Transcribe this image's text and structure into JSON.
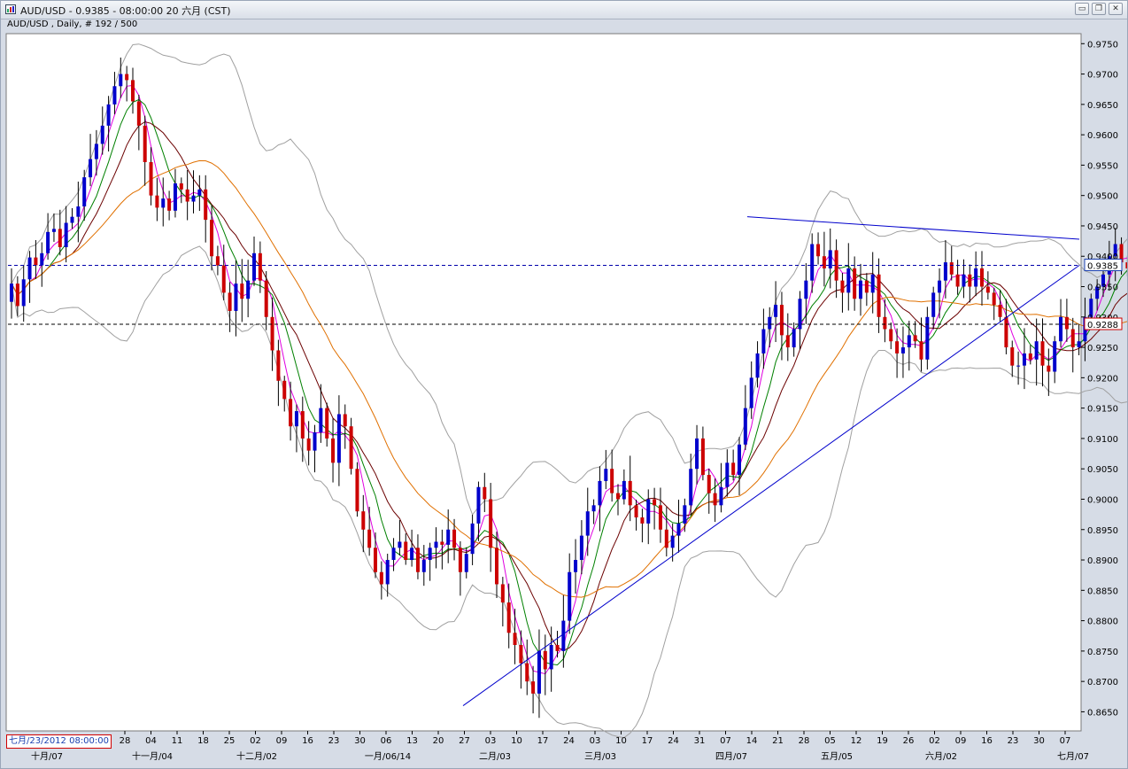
{
  "window": {
    "title": "AUD/USD - 0.9385 - 08:00:00  20 六月 (CST)",
    "minimize_label": "▭",
    "restore_label": "❐",
    "close_label": "✕"
  },
  "chart_header": "AUD/USD , Daily, # 192 / 500",
  "cursor_date": "七月/23/2012 08:00:00",
  "colors": {
    "bull_candle": "#0000cc",
    "bear_candle": "#cc0000",
    "bollinger": "#a0a0a0",
    "ma_fast": "#e000e0",
    "ma_mid": "#008000",
    "ma_slow": "#6b0000",
    "ma_long": "#e07000",
    "trendline": "#0000cc",
    "price_line": "#0000aa",
    "level_line": "#000000"
  },
  "chart_data": {
    "type": "candlestick",
    "symbol": "AUD/USD",
    "timeframe": "Daily",
    "ylim": [
      0.862,
      0.9765
    ],
    "y_ticks": [
      "0.9750",
      "0.9700",
      "0.9650",
      "0.9600",
      "0.9550",
      "0.9500",
      "0.9450",
      "0.9400",
      "0.9350",
      "0.9300",
      "0.9250",
      "0.9200",
      "0.9150",
      "0.9100",
      "0.9050",
      "0.9000",
      "0.8950",
      "0.8900",
      "0.8850",
      "0.8800",
      "0.8750",
      "0.8700",
      "0.8650"
    ],
    "x_ticks": [
      "28",
      "04",
      "11",
      "18",
      "25",
      "02",
      "09",
      "16",
      "23",
      "30",
      "06",
      "13",
      "20",
      "27",
      "03",
      "10",
      "17",
      "24",
      "03",
      "10",
      "17",
      "24",
      "31",
      "07",
      "14",
      "21",
      "28",
      "05",
      "12",
      "19",
      "26",
      "02",
      "09",
      "16",
      "23",
      "30",
      "07"
    ],
    "month_labels": [
      "十月/07",
      "十一月/04",
      "十二月/02",
      "一月/06/14",
      "二月/03",
      "三月/03",
      "四月/07",
      "五月/05",
      "六月/02",
      "七月/07"
    ],
    "current_price": "0.9385",
    "current_price_value": 0.9385,
    "level_label": "0.9288",
    "level_value": 0.9288,
    "closes": [
      0.9355,
      0.9318,
      0.9362,
      0.9398,
      0.9385,
      0.9405,
      0.944,
      0.9445,
      0.9415,
      0.9455,
      0.9465,
      0.9482,
      0.953,
      0.956,
      0.9585,
      0.9615,
      0.965,
      0.968,
      0.97,
      0.969,
      0.9655,
      0.9615,
      0.9555,
      0.95,
      0.948,
      0.9495,
      0.9475,
      0.952,
      0.951,
      0.949,
      0.95,
      0.951,
      0.946,
      0.94,
      0.9385,
      0.934,
      0.931,
      0.9355,
      0.933,
      0.936,
      0.9405,
      0.936,
      0.93,
      0.9245,
      0.9195,
      0.9165,
      0.912,
      0.9145,
      0.91,
      0.908,
      0.911,
      0.915,
      0.91,
      0.906,
      0.914,
      0.912,
      0.905,
      0.898,
      0.895,
      0.892,
      0.888,
      0.886,
      0.89,
      0.892,
      0.893,
      0.89,
      0.892,
      0.888,
      0.89,
      0.892,
      0.893,
      0.8925,
      0.895,
      0.892,
      0.888,
      0.891,
      0.896,
      0.902,
      0.9,
      0.892,
      0.886,
      0.883,
      0.878,
      0.876,
      0.873,
      0.87,
      0.868,
      0.875,
      0.872,
      0.876,
      0.875,
      0.88,
      0.888,
      0.89,
      0.894,
      0.898,
      0.899,
      0.903,
      0.905,
      0.901,
      0.9,
      0.903,
      0.899,
      0.897,
      0.896,
      0.9,
      0.899,
      0.895,
      0.892,
      0.894,
      0.896,
      0.899,
      0.905,
      0.91,
      0.904,
      0.901,
      0.899,
      0.902,
      0.906,
      0.904,
      0.909,
      0.915,
      0.92,
      0.924,
      0.928,
      0.93,
      0.932,
      0.927,
      0.925,
      0.928,
      0.933,
      0.936,
      0.942,
      0.94,
      0.938,
      0.941,
      0.936,
      0.934,
      0.938,
      0.933,
      0.936,
      0.934,
      0.937,
      0.93,
      0.928,
      0.926,
      0.924,
      0.925,
      0.927,
      0.926,
      0.923,
      0.93,
      0.934,
      0.936,
      0.939,
      0.937,
      0.935,
      0.937,
      0.935,
      0.938,
      0.935,
      0.934,
      0.932,
      0.93,
      0.925,
      0.922,
      0.922,
      0.924,
      0.923,
      0.926,
      0.922,
      0.921,
      0.926,
      0.93,
      0.928,
      0.925,
      0.926,
      0.93,
      0.933,
      0.935,
      0.937,
      0.94,
      0.942,
      0.939,
      0.938,
      0.936,
      0.933,
      0.936,
      0.939,
      0.9385
    ],
    "trendlines": [
      {
        "name": "support",
        "from": {
          "date": "二月/03 (27)",
          "price": 0.866
        },
        "to": {
          "date": "七月/07",
          "price": 0.9385
        }
      },
      {
        "name": "resistance",
        "from": {
          "date": "四月/07 (14)",
          "price": 0.9465
        },
        "to": {
          "date": "七月/07",
          "price": 0.9428
        }
      }
    ],
    "indicators": [
      "Bollinger Bands",
      "Moving Average (fast)",
      "Moving Average (mid)",
      "Moving Average (slow)",
      "Moving Average (long)"
    ]
  }
}
